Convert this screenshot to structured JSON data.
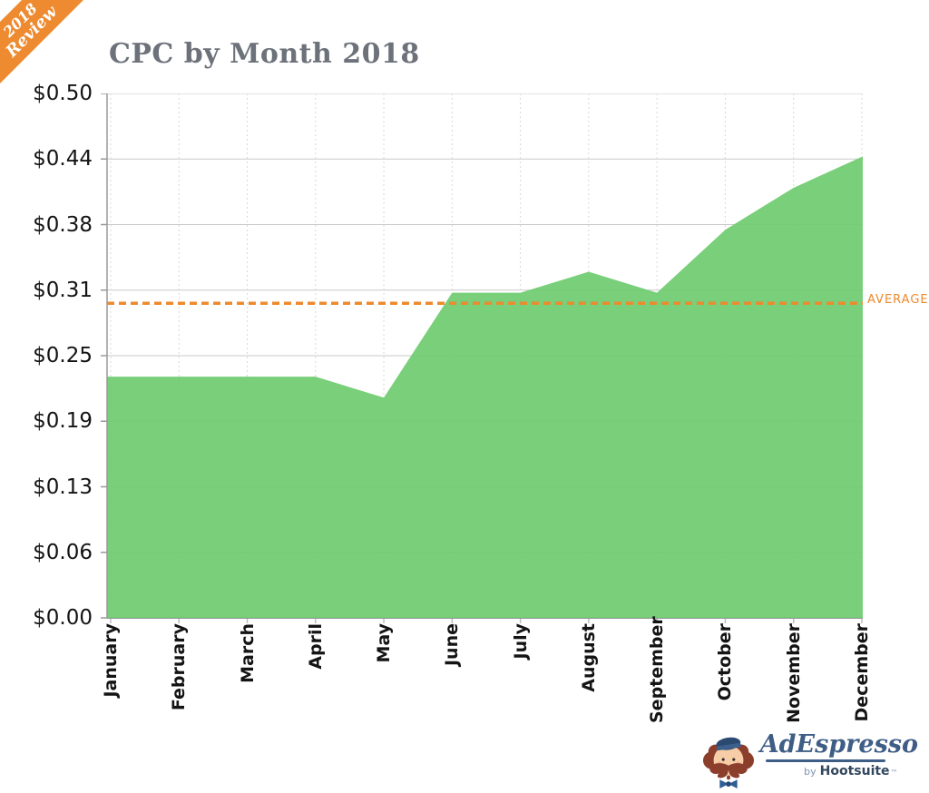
{
  "ribbon": {
    "line1": "2018",
    "line2": "Review",
    "color": "#EE8A2F"
  },
  "header": {
    "title": "CPC by Month 2018",
    "title_color": "#6C717A"
  },
  "chart_data": {
    "type": "area",
    "title": "CPC by Month 2018",
    "categories": [
      "January",
      "February",
      "March",
      "April",
      "May",
      "June",
      "July",
      "August",
      "September",
      "October",
      "November",
      "December"
    ],
    "values": [
      0.23,
      0.23,
      0.23,
      0.23,
      0.21,
      0.31,
      0.31,
      0.33,
      0.31,
      0.37,
      0.41,
      0.44
    ],
    "average": 0.3,
    "average_label": "AVERAGE",
    "y_tick_labels": [
      "$0.50",
      "$0.44",
      "$0.38",
      "$0.31",
      "$0.25",
      "$0.19",
      "$0.13",
      "$0.06",
      "$0.00"
    ],
    "ylim": [
      0,
      0.5
    ],
    "currency_unit": "$",
    "grid": true,
    "legend_position": "right-of-average-line",
    "area_color": "#6FCB70",
    "average_color": "#ED8A2E"
  },
  "footer": {
    "brand": "AdEspresso",
    "by": "by",
    "parent_brand": "Hootsuite",
    "trademark": "™"
  }
}
